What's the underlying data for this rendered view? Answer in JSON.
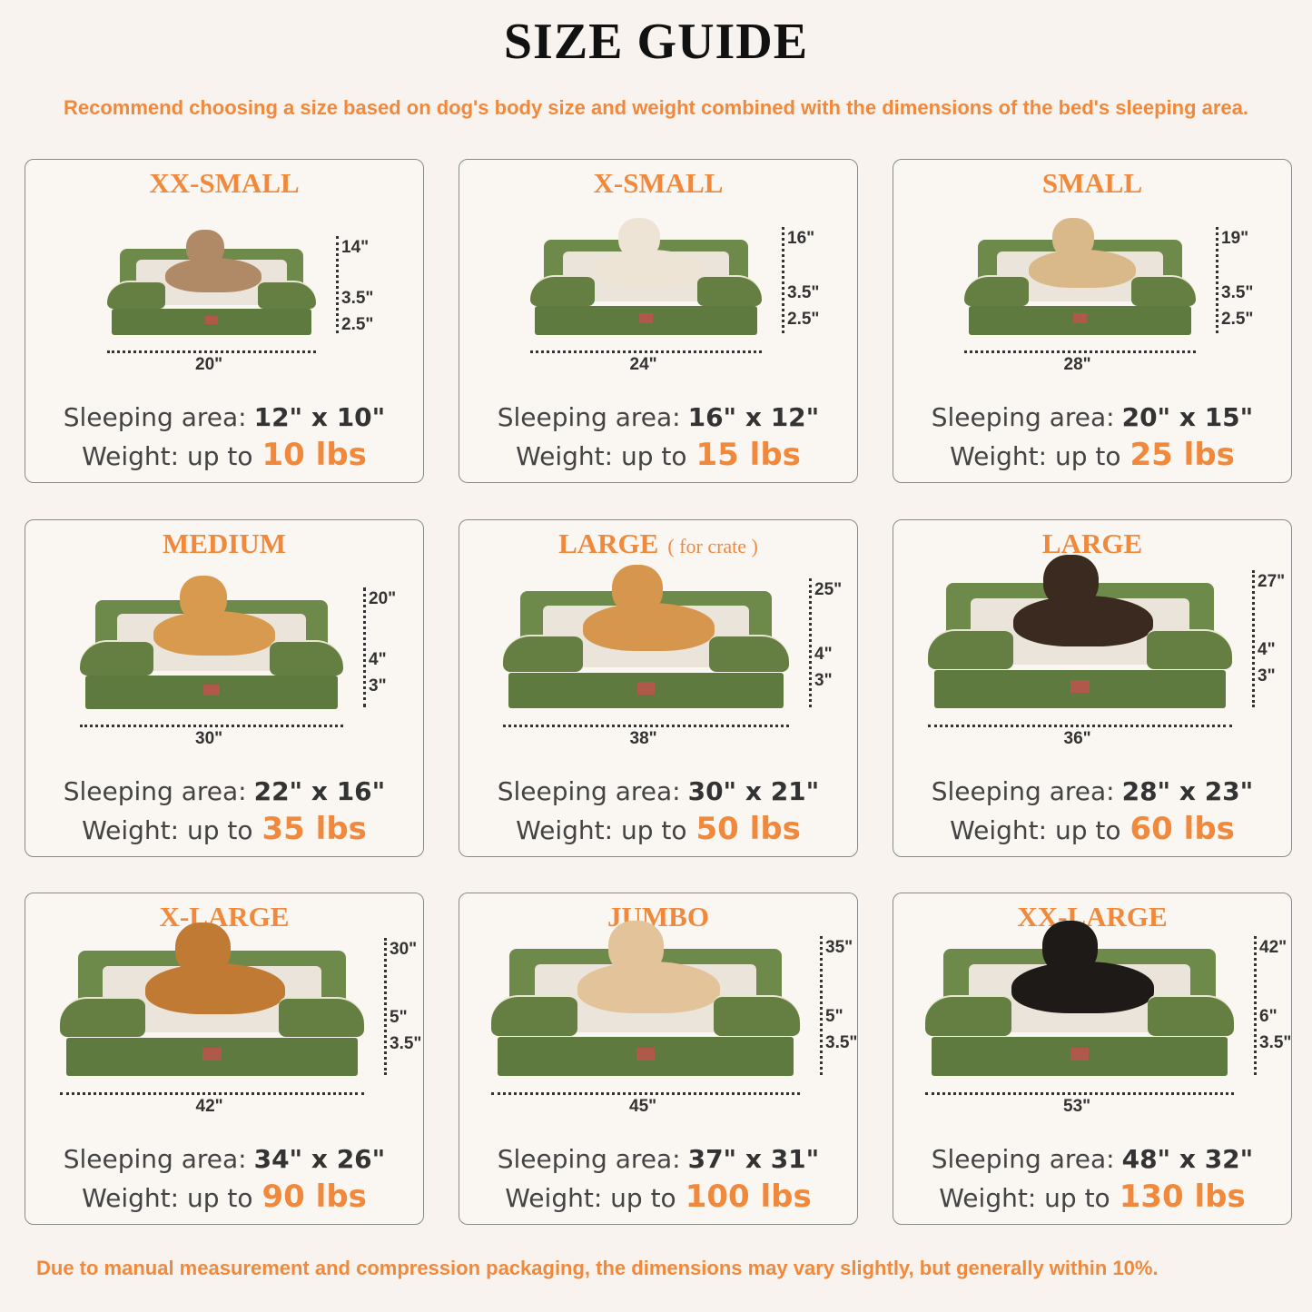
{
  "title": "SIZE GUIDE",
  "subtitle": "Recommend choosing a size based on dog's body size and weight combined with the dimensions of the bed's sleeping area.",
  "footer": "Due to manual measurement and compression packaging, the dimensions may vary slightly, but generally within 10%.",
  "labels": {
    "sleeping_area": "Sleeping area:",
    "weight": "Weight: up to"
  },
  "colors": {
    "accent": "#f0893c",
    "bed_green": "#6e8a4a",
    "cushion": "#ebe4da"
  },
  "cards": [
    {
      "name": "XX-SMALL",
      "note": "",
      "length": "20\"",
      "height_total": "14\"",
      "bolster": "3.5\"",
      "base": "2.5\"",
      "sleeping_area": "12\" x 10\"",
      "weight": "10 lbs",
      "pet": "ragdoll cat",
      "pet_color": "#b08a66"
    },
    {
      "name": "X-SMALL",
      "note": "",
      "length": "24\"",
      "height_total": "16\"",
      "bolster": "3.5\"",
      "base": "2.5\"",
      "sleeping_area": "16\" x 12\"",
      "weight": "15 lbs",
      "pet": "small white dog",
      "pet_color": "#eee4d6"
    },
    {
      "name": "SMALL",
      "note": "",
      "length": "28\"",
      "height_total": "19\"",
      "bolster": "3.5\"",
      "base": "2.5\"",
      "sleeping_area": "20\" x 15\"",
      "weight": "25 lbs",
      "pet": "french bulldog",
      "pet_color": "#d9b98a"
    },
    {
      "name": "MEDIUM",
      "note": "",
      "length": "30\"",
      "height_total": "20\"",
      "bolster": "4\"",
      "base": "3\"",
      "sleeping_area": "22\" x 16\"",
      "weight": "35 lbs",
      "pet": "corgi",
      "pet_color": "#d89a4e"
    },
    {
      "name": "LARGE",
      "note": "( for crate )",
      "length": "38\"",
      "height_total": "25\"",
      "bolster": "4\"",
      "base": "3\"",
      "sleeping_area": "30\" x 21\"",
      "weight": "50 lbs",
      "pet": "shiba inu",
      "pet_color": "#d6964e"
    },
    {
      "name": "LARGE",
      "note": "",
      "length": "36\"",
      "height_total": "27\"",
      "bolster": "4\"",
      "base": "3\"",
      "sleeping_area": "28\" x 23\"",
      "weight": "60 lbs",
      "pet": "australian shepherd",
      "pet_color": "#3a2a20"
    },
    {
      "name": "X-LARGE",
      "note": "",
      "length": "42\"",
      "height_total": "30\"",
      "bolster": "5\"",
      "base": "3.5\"",
      "sleeping_area": "34\" x 26\"",
      "weight": "90 lbs",
      "pet": "golden retriever",
      "pet_color": "#c07a34"
    },
    {
      "name": "JUMBO",
      "note": "",
      "length": "45\"",
      "height_total": "35\"",
      "bolster": "5\"",
      "base": "3.5\"",
      "sleeping_area": "37\" x 31\"",
      "weight": "100 lbs",
      "pet": "labrador",
      "pet_color": "#e2c39a"
    },
    {
      "name": "XX-LARGE",
      "note": "",
      "length": "53\"",
      "height_total": "42\"",
      "bolster": "6\"",
      "base": "3.5\"",
      "sleeping_area": "48\" x 32\"",
      "weight": "130 lbs",
      "pet": "rottweiler",
      "pet_color": "#1e1a18"
    }
  ]
}
